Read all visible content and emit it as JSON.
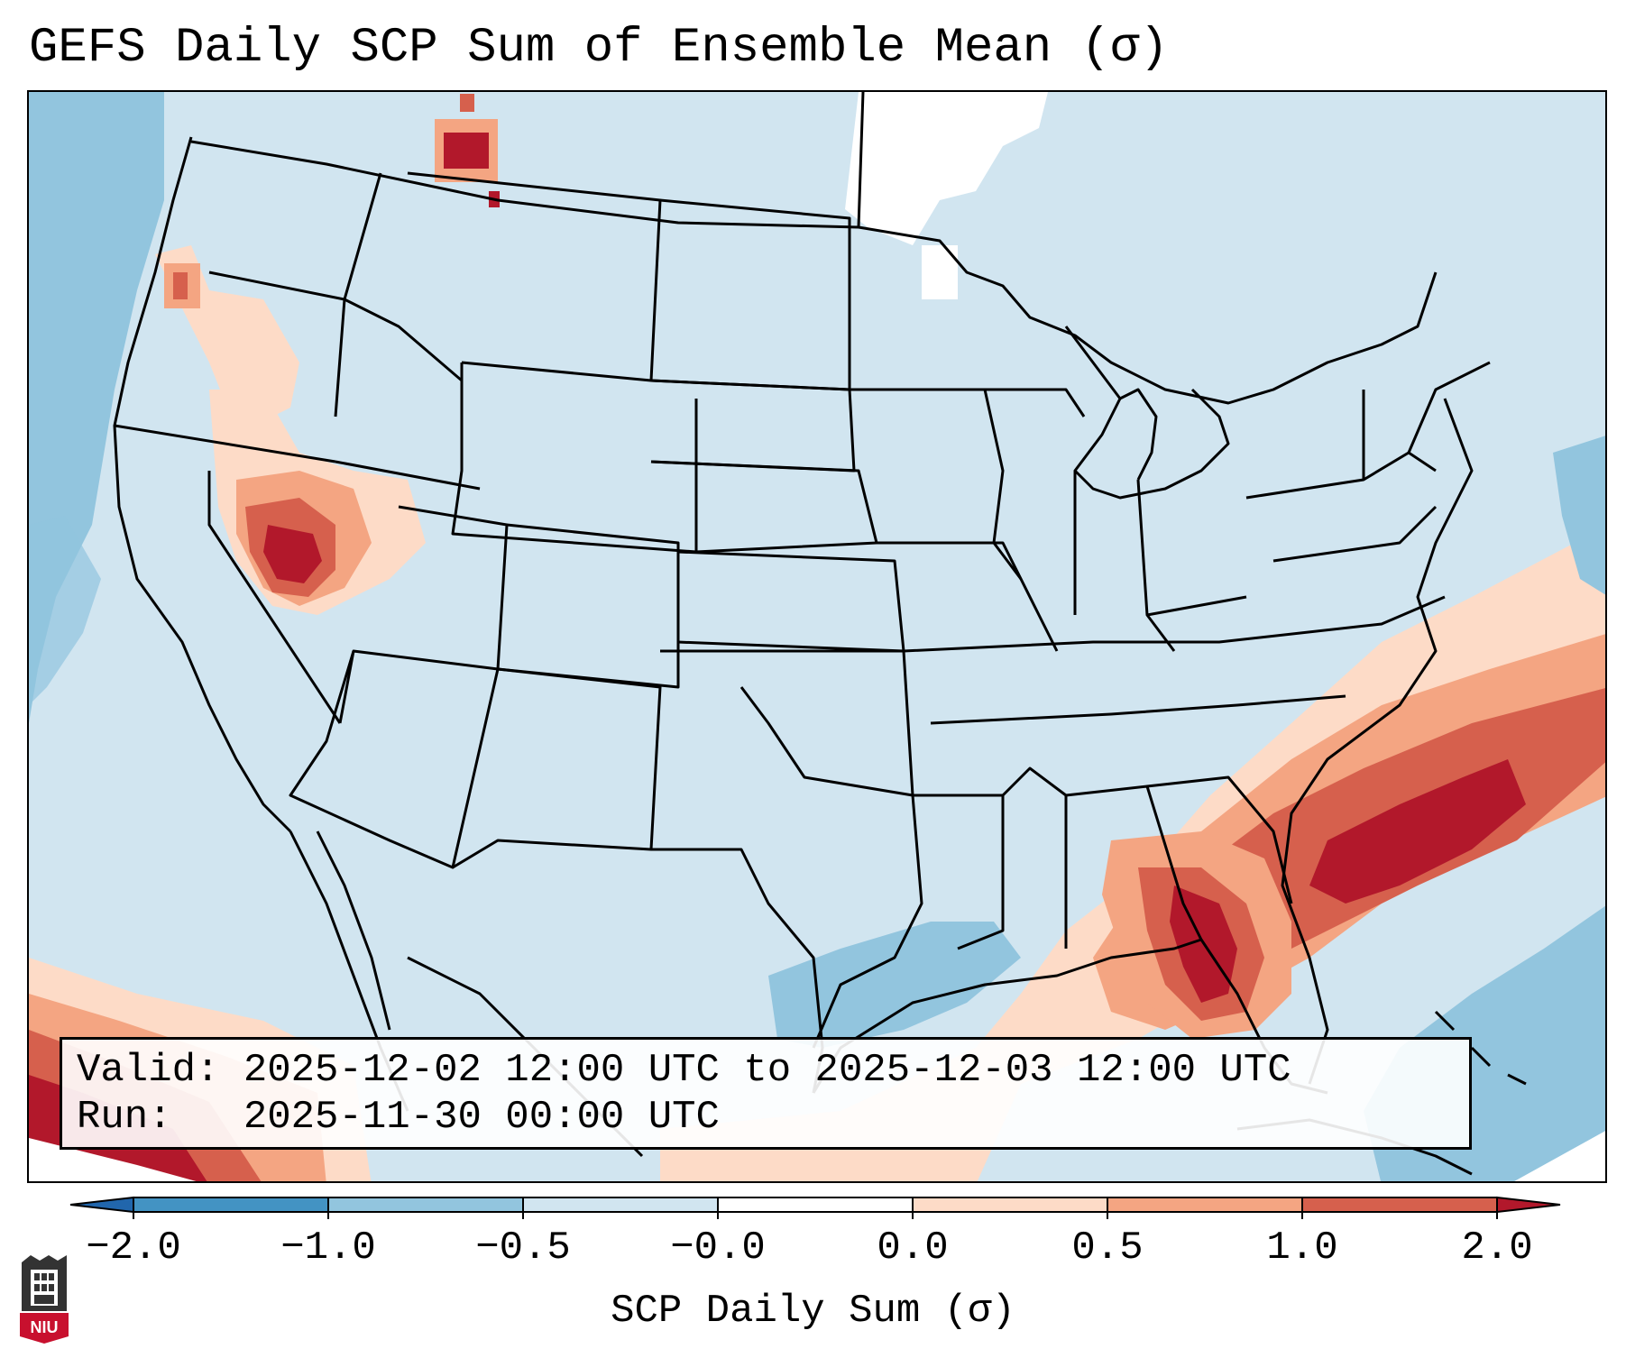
{
  "title": "GEFS Daily SCP Sum of Ensemble Mean (σ)",
  "info": {
    "valid_label": "Valid:",
    "valid_value": "2025-12-02 12:00 UTC to 2025-12-03 12:00 UTC",
    "run_label": "Run:",
    "run_value": "2025-11-30 00:00 UTC"
  },
  "colorbar": {
    "title": "SCP Daily Sum (σ)",
    "ticks": [
      "−2.0",
      "−1.0",
      "−0.5",
      "−0.0",
      "0.0",
      "0.5",
      "1.0",
      "2.0"
    ],
    "colors": [
      "#4393c3",
      "#92c5de",
      "#d1e5f0",
      "#ffffff",
      "#fddbc7",
      "#f4a582",
      "#d6604d",
      "#b2182b"
    ],
    "under_color": "#2166ac",
    "over_color": "#b2182b"
  },
  "map": {
    "background_color": "#d1e5f0",
    "state_line_color": "#000000"
  },
  "logo": {
    "icon": "niu-seal-icon",
    "text": "NIU"
  }
}
